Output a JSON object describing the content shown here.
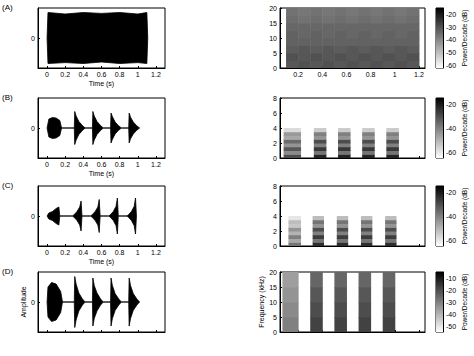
{
  "chart_data": [
    {
      "type": "line",
      "title": "(A)",
      "xlabel": "Time (s)",
      "xlim": [
        -0.1,
        1.3
      ],
      "xticks": [
        0,
        0.2,
        0.4,
        0.6,
        0.8,
        1,
        1.2
      ],
      "ylim": [
        -1,
        1
      ],
      "yticks": [
        0
      ],
      "color": "#000000",
      "x": [
        0,
        0.01,
        0.2,
        0.4,
        0.6,
        0.8,
        1,
        1.1,
        1.11
      ],
      "series": [
        {
          "values": [
            0,
            0.85,
            0.8,
            0.85,
            0.82,
            0.85,
            0.8,
            0.85,
            0
          ]
        },
        {
          "values": [
            0,
            -0.85,
            -0.82,
            -0.85,
            -0.8,
            -0.85,
            -0.82,
            -0.85,
            0
          ]
        }
      ]
    },
    {
      "type": "heatmap",
      "xlim": [
        0.05,
        1.25
      ],
      "xticks": [
        0.2,
        0.4,
        0.6,
        0.8,
        1,
        1.2
      ],
      "ylim": [
        0,
        20
      ],
      "yticks": [
        0,
        5,
        10,
        15,
        20
      ],
      "time_bins": [
        [
          0.1,
          0.2
        ],
        [
          0.2,
          0.3
        ],
        [
          0.3,
          0.4
        ],
        [
          0.4,
          0.5
        ],
        [
          0.5,
          0.6
        ],
        [
          0.6,
          0.7
        ],
        [
          0.7,
          0.8
        ],
        [
          0.8,
          0.9
        ],
        [
          0.9,
          1
        ],
        [
          1,
          1.1
        ],
        [
          1.1,
          1.2
        ]
      ],
      "freq_bins": [
        0,
        2.5,
        5,
        7.5,
        10,
        12.5,
        15,
        17.5,
        20
      ],
      "power": [
        [
          -31,
          -30,
          -32,
          -33,
          -33,
          -34,
          -35,
          -36
        ],
        [
          -30,
          -31,
          -31,
          -33,
          -34,
          -34,
          -36,
          -37
        ],
        [
          -31,
          -30,
          -32,
          -33,
          -33,
          -34,
          -35,
          -36
        ],
        [
          -30,
          -31,
          -31,
          -33,
          -34,
          -34,
          -36,
          -37
        ],
        [
          -31,
          -30,
          -32,
          -33,
          -33,
          -34,
          -35,
          -36
        ],
        [
          -30,
          -31,
          -31,
          -33,
          -34,
          -34,
          -36,
          -37
        ],
        [
          -31,
          -30,
          -32,
          -33,
          -33,
          -34,
          -35,
          -36
        ],
        [
          -30,
          -31,
          -31,
          -33,
          -34,
          -34,
          -36,
          -37
        ],
        [
          -31,
          -30,
          -32,
          -33,
          -33,
          -34,
          -35,
          -36
        ],
        [
          -30,
          -31,
          -31,
          -33,
          -34,
          -34,
          -36,
          -37
        ],
        [
          -31,
          -30,
          -32,
          -33,
          -33,
          -34,
          -35,
          -36
        ]
      ],
      "colorbar": {
        "label": "Power/Decade (dB)",
        "range": [
          -62,
          -15
        ],
        "ticks": [
          -60,
          -50,
          -40,
          -30,
          -20
        ]
      }
    },
    {
      "type": "line",
      "title": "(B)",
      "xlabel": "Time (s)",
      "xlim": [
        -0.1,
        1.3
      ],
      "xticks": [
        0,
        0.2,
        0.4,
        0.6,
        0.8,
        1,
        1.2
      ],
      "ylim": [
        -1,
        1
      ],
      "yticks": [
        0
      ],
      "color": "#000000",
      "x": [
        0,
        0.02,
        0.06,
        0.1,
        0.14,
        0.16,
        0.3,
        0.305,
        0.32,
        0.35,
        0.39,
        0.42,
        0.5,
        0.505,
        0.52,
        0.55,
        0.59,
        0.62,
        0.7,
        0.705,
        0.72,
        0.75,
        0.79,
        0.82,
        0.9,
        0.905,
        0.92,
        0.95,
        0.99,
        1.02
      ],
      "series": [
        {
          "values": [
            0,
            0.3,
            0.35,
            0.33,
            0.25,
            0,
            0,
            0.55,
            0.4,
            0.22,
            0.08,
            0,
            0,
            0.55,
            0.4,
            0.22,
            0.08,
            0,
            0,
            0.5,
            0.38,
            0.2,
            0.07,
            0,
            0,
            0.5,
            0.36,
            0.2,
            0.07,
            0
          ]
        },
        {
          "values": [
            0,
            -0.3,
            -0.35,
            -0.33,
            -0.25,
            0,
            0,
            -0.55,
            -0.4,
            -0.22,
            -0.08,
            0,
            0,
            -0.55,
            -0.4,
            -0.22,
            -0.08,
            0,
            0,
            -0.5,
            -0.38,
            -0.2,
            -0.07,
            0,
            0,
            -0.5,
            -0.36,
            -0.2,
            -0.07,
            0
          ]
        }
      ]
    },
    {
      "type": "heatmap",
      "xlim": [
        0.05,
        1.25
      ],
      "xticks": [
        0.2,
        0.4,
        0.6,
        0.8,
        1,
        1.2
      ],
      "ylim": [
        0,
        8
      ],
      "yticks": [
        0,
        2,
        4,
        6,
        8
      ],
      "tick_labels": "y",
      "time_bins": [
        [
          0.08,
          0.22
        ],
        [
          0.33,
          0.43
        ],
        [
          0.53,
          0.63
        ],
        [
          0.73,
          0.83
        ],
        [
          0.93,
          1.03
        ]
      ],
      "freq_bins": [
        0,
        0.5,
        1,
        1.5,
        2,
        2.5,
        3,
        3.5,
        4
      ],
      "power": [
        [
          -30,
          -42,
          -32,
          -44,
          -36,
          -48,
          -45,
          -58
        ],
        [
          -22,
          -38,
          -26,
          -40,
          -30,
          -44,
          -40,
          -55
        ],
        [
          -22,
          -38,
          -26,
          -40,
          -30,
          -44,
          -40,
          -55
        ],
        [
          -22,
          -38,
          -26,
          -40,
          -30,
          -44,
          -40,
          -55
        ],
        [
          -22,
          -38,
          -26,
          -40,
          -30,
          -44,
          -40,
          -55
        ]
      ],
      "colorbar": {
        "label": "Power/Decade (dB)",
        "range": [
          -65,
          -15
        ],
        "ticks": [
          -60,
          -40,
          -20
        ]
      }
    },
    {
      "type": "line",
      "title": "(C)",
      "xlabel": "Time (s)",
      "xlim": [
        -0.1,
        1.3
      ],
      "xticks": [
        0,
        0.2,
        0.4,
        0.6,
        0.8,
        1,
        1.2
      ],
      "ylim": [
        -1,
        1
      ],
      "yticks": [
        0
      ],
      "color": "#000000",
      "x": [
        0,
        0.02,
        0.06,
        0.1,
        0.13,
        0.14,
        0.28,
        0.3,
        0.33,
        0.36,
        0.375,
        0.385,
        0.48,
        0.5,
        0.53,
        0.56,
        0.575,
        0.585,
        0.68,
        0.7,
        0.73,
        0.76,
        0.775,
        0.785,
        0.88,
        0.9,
        0.93,
        0.96,
        0.975,
        0.985
      ],
      "series": [
        {
          "values": [
            0,
            0.1,
            0.15,
            0.25,
            0.3,
            0,
            0,
            0.05,
            0.15,
            0.3,
            0.5,
            0,
            0,
            0.05,
            0.15,
            0.3,
            0.55,
            0,
            0,
            0.05,
            0.15,
            0.32,
            0.6,
            0,
            0,
            0.05,
            0.15,
            0.32,
            0.6,
            0
          ]
        },
        {
          "values": [
            0,
            -0.1,
            -0.15,
            -0.25,
            -0.3,
            0,
            0,
            -0.05,
            -0.15,
            -0.3,
            -0.5,
            0,
            0,
            -0.05,
            -0.15,
            -0.3,
            -0.55,
            0,
            0,
            -0.05,
            -0.15,
            -0.32,
            -0.6,
            0,
            0,
            -0.05,
            -0.15,
            -0.32,
            -0.6,
            0
          ]
        }
      ]
    },
    {
      "type": "heatmap",
      "xlim": [
        0.05,
        1.25
      ],
      "xticks": [
        0.2,
        0.4,
        0.6,
        0.8,
        1,
        1.2
      ],
      "ylim": [
        0,
        8
      ],
      "yticks": [
        0,
        2,
        4,
        6,
        8
      ],
      "tick_labels": "y",
      "time_bins": [
        [
          0.12,
          0.22
        ],
        [
          0.32,
          0.41
        ],
        [
          0.52,
          0.61
        ],
        [
          0.72,
          0.81
        ],
        [
          0.92,
          1.01
        ]
      ],
      "freq_bins": [
        0,
        0.5,
        1,
        1.5,
        2,
        2.5,
        3,
        3.5,
        4
      ],
      "power": [
        [
          -38,
          -48,
          -40,
          -50,
          -44,
          -54,
          -52,
          -60
        ],
        [
          -24,
          -38,
          -27,
          -40,
          -30,
          -44,
          -38,
          -52
        ],
        [
          -24,
          -38,
          -27,
          -40,
          -30,
          -44,
          -38,
          -52
        ],
        [
          -24,
          -38,
          -27,
          -40,
          -30,
          -44,
          -38,
          -52
        ],
        [
          -24,
          -38,
          -27,
          -40,
          -30,
          -44,
          -38,
          -52
        ]
      ],
      "colorbar": {
        "label": "Power/Decade (dB)",
        "range": [
          -65,
          -15
        ],
        "ticks": [
          -60,
          -40,
          -20
        ]
      }
    },
    {
      "type": "line",
      "title": "(D)",
      "ylabel": "Amplitude",
      "xlim": [
        -0.1,
        1.3
      ],
      "xticks": [
        0,
        0.2,
        0.4,
        0.6,
        0.8,
        1,
        1.2
      ],
      "ylim": [
        -1,
        1
      ],
      "yticks": [
        0
      ],
      "color": "#000000",
      "tick_labels": "y",
      "x": [
        0,
        0.01,
        0.05,
        0.1,
        0.15,
        0.17,
        0.3,
        0.305,
        0.32,
        0.35,
        0.39,
        0.42,
        0.5,
        0.505,
        0.52,
        0.55,
        0.59,
        0.62,
        0.7,
        0.705,
        0.72,
        0.75,
        0.79,
        0.82,
        0.9,
        0.905,
        0.92,
        0.95,
        0.99,
        1.02
      ],
      "series": [
        {
          "values": [
            0,
            0.5,
            0.65,
            0.6,
            0.35,
            0,
            0,
            0.85,
            0.6,
            0.3,
            0.1,
            0,
            0,
            0.8,
            0.55,
            0.3,
            0.1,
            0,
            0,
            0.8,
            0.55,
            0.28,
            0.1,
            0,
            0,
            0.8,
            0.55,
            0.28,
            0.1,
            0
          ]
        },
        {
          "values": [
            0,
            -0.5,
            -0.65,
            -0.6,
            -0.35,
            0,
            0,
            -0.85,
            -0.6,
            -0.3,
            -0.1,
            0,
            0,
            -0.8,
            -0.55,
            -0.3,
            -0.1,
            0,
            0,
            -0.8,
            -0.55,
            -0.28,
            -0.1,
            0,
            0,
            -0.8,
            -0.55,
            -0.28,
            -0.1,
            0
          ]
        }
      ]
    },
    {
      "type": "heatmap",
      "ylabel": "Frequency (kHz)",
      "xlim": [
        0.05,
        1.25
      ],
      "xticks": [
        0.2,
        0.4,
        0.6,
        0.8,
        1,
        1.2
      ],
      "ylim": [
        0,
        20
      ],
      "yticks": [
        0,
        5,
        10,
        15,
        20
      ],
      "tick_labels": "y",
      "time_bins": [
        [
          0.07,
          0.2
        ],
        [
          0.3,
          0.4
        ],
        [
          0.5,
          0.6
        ],
        [
          0.7,
          0.8
        ],
        [
          0.9,
          1
        ]
      ],
      "freq_bins": [
        0,
        5,
        10,
        15,
        20
      ],
      "power": [
        [
          -30,
          -32,
          -34,
          -36
        ],
        [
          -18,
          -20,
          -22,
          -25
        ],
        [
          -18,
          -20,
          -22,
          -25
        ],
        [
          -18,
          -20,
          -22,
          -25
        ],
        [
          -18,
          -20,
          -22,
          -25
        ]
      ],
      "colorbar": {
        "label": "Power/Decade (dB)",
        "range": [
          -55,
          -5
        ],
        "ticks": [
          -50,
          -40,
          -30,
          -20,
          -10
        ]
      }
    }
  ]
}
